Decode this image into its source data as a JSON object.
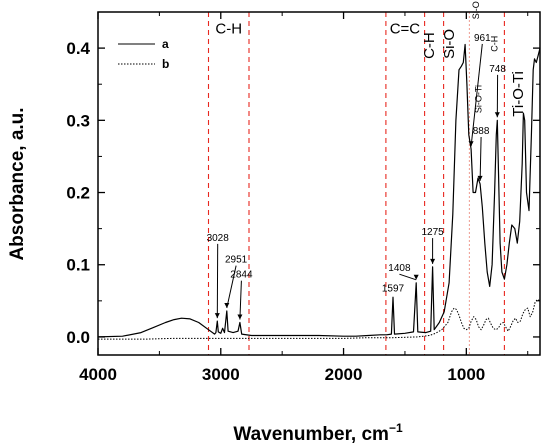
{
  "chart_data": {
    "type": "line",
    "title": "",
    "xlabel": "Wavenumber, cm",
    "xlabel_superscript": "−1",
    "ylabel": "Absorbance, a.u.",
    "xlim": [
      4000,
      400
    ],
    "ylim": [
      -0.025,
      0.45
    ],
    "x_reversed": true,
    "x_ticks": [
      4000,
      3000,
      2000,
      1000
    ],
    "x_tick_labels": [
      "4000",
      "3000",
      "2000",
      "1000"
    ],
    "y_ticks": [
      0.0,
      0.1,
      0.2,
      0.3,
      0.4
    ],
    "y_tick_labels": [
      "0.0",
      "0.1",
      "0.2",
      "0.3",
      "0.4"
    ],
    "legend_position": "top-left",
    "grid": false,
    "series": [
      {
        "name": "a",
        "style": "solid",
        "color": "#000000",
        "points": [
          [
            4000,
            0.0
          ],
          [
            3800,
            0.001
          ],
          [
            3650,
            0.006
          ],
          [
            3550,
            0.013
          ],
          [
            3450,
            0.02
          ],
          [
            3380,
            0.024
          ],
          [
            3320,
            0.026
          ],
          [
            3250,
            0.025
          ],
          [
            3180,
            0.02
          ],
          [
            3100,
            0.01
          ],
          [
            3050,
            0.004
          ],
          [
            3040,
            0.006
          ],
          [
            3028,
            0.022
          ],
          [
            3020,
            0.007
          ],
          [
            3000,
            0.005
          ],
          [
            2985,
            0.012
          ],
          [
            2970,
            0.006
          ],
          [
            2951,
            0.036
          ],
          [
            2940,
            0.008
          ],
          [
            2900,
            0.006
          ],
          [
            2860,
            0.008
          ],
          [
            2844,
            0.02
          ],
          [
            2830,
            0.004
          ],
          [
            2750,
            0.002
          ],
          [
            2600,
            0.002
          ],
          [
            2400,
            0.002
          ],
          [
            2200,
            0.002
          ],
          [
            2000,
            0.001
          ],
          [
            1900,
            0.001
          ],
          [
            1800,
            0.002
          ],
          [
            1700,
            0.003
          ],
          [
            1650,
            0.003
          ],
          [
            1610,
            0.004
          ],
          [
            1597,
            0.055
          ],
          [
            1585,
            0.004
          ],
          [
            1500,
            0.005
          ],
          [
            1430,
            0.007
          ],
          [
            1408,
            0.075
          ],
          [
            1395,
            0.007
          ],
          [
            1330,
            0.006
          ],
          [
            1290,
            0.008
          ],
          [
            1275,
            0.097
          ],
          [
            1262,
            0.01
          ],
          [
            1220,
            0.02
          ],
          [
            1180,
            0.035
          ],
          [
            1140,
            0.075
          ],
          [
            1110,
            0.17
          ],
          [
            1085,
            0.3
          ],
          [
            1060,
            0.37
          ],
          [
            1040,
            0.375
          ],
          [
            1025,
            0.38
          ],
          [
            1010,
            0.405
          ],
          [
            995,
            0.35
          ],
          [
            980,
            0.28
          ],
          [
            961,
            0.26
          ],
          [
            945,
            0.2
          ],
          [
            925,
            0.2
          ],
          [
            905,
            0.22
          ],
          [
            888,
            0.212
          ],
          [
            870,
            0.18
          ],
          [
            850,
            0.13
          ],
          [
            830,
            0.09
          ],
          [
            810,
            0.07
          ],
          [
            790,
            0.1
          ],
          [
            770,
            0.2
          ],
          [
            756,
            0.28
          ],
          [
            748,
            0.3
          ],
          [
            740,
            0.24
          ],
          [
            725,
            0.13
          ],
          [
            710,
            0.09
          ],
          [
            690,
            0.08
          ],
          [
            670,
            0.1
          ],
          [
            650,
            0.13
          ],
          [
            630,
            0.155
          ],
          [
            605,
            0.15
          ],
          [
            585,
            0.13
          ],
          [
            565,
            0.16
          ],
          [
            545,
            0.24
          ],
          [
            535,
            0.31
          ],
          [
            525,
            0.3
          ],
          [
            510,
            0.2
          ],
          [
            490,
            0.175
          ],
          [
            470,
            0.28
          ],
          [
            455,
            0.37
          ],
          [
            445,
            0.385
          ],
          [
            430,
            0.38
          ],
          [
            415,
            0.39
          ],
          [
            400,
            0.4
          ]
        ]
      },
      {
        "name": "b",
        "style": "dotted",
        "color": "#000000",
        "points": [
          [
            4000,
            -0.003
          ],
          [
            3800,
            -0.003
          ],
          [
            3600,
            -0.003
          ],
          [
            3400,
            -0.002
          ],
          [
            3200,
            -0.002
          ],
          [
            3000,
            -0.002
          ],
          [
            2800,
            -0.002
          ],
          [
            2600,
            -0.002
          ],
          [
            2400,
            -0.002
          ],
          [
            2200,
            -0.002
          ],
          [
            2000,
            -0.002
          ],
          [
            1800,
            -0.001
          ],
          [
            1600,
            -0.001
          ],
          [
            1400,
            0.0
          ],
          [
            1300,
            0.002
          ],
          [
            1250,
            0.005
          ],
          [
            1200,
            0.01
          ],
          [
            1150,
            0.02
          ],
          [
            1120,
            0.035
          ],
          [
            1100,
            0.04
          ],
          [
            1080,
            0.038
          ],
          [
            1060,
            0.03
          ],
          [
            1040,
            0.02
          ],
          [
            1020,
            0.012
          ],
          [
            1000,
            0.01
          ],
          [
            980,
            0.012
          ],
          [
            960,
            0.022
          ],
          [
            940,
            0.028
          ],
          [
            920,
            0.024
          ],
          [
            900,
            0.014
          ],
          [
            880,
            0.01
          ],
          [
            860,
            0.016
          ],
          [
            840,
            0.024
          ],
          [
            820,
            0.026
          ],
          [
            800,
            0.018
          ],
          [
            780,
            0.012
          ],
          [
            760,
            0.01
          ],
          [
            740,
            0.012
          ],
          [
            720,
            0.018
          ],
          [
            700,
            0.02
          ],
          [
            680,
            0.014
          ],
          [
            660,
            0.008
          ],
          [
            640,
            0.014
          ],
          [
            620,
            0.022
          ],
          [
            600,
            0.026
          ],
          [
            580,
            0.02
          ],
          [
            560,
            0.022
          ],
          [
            540,
            0.032
          ],
          [
            520,
            0.038
          ],
          [
            500,
            0.04
          ],
          [
            480,
            0.028
          ],
          [
            460,
            0.034
          ],
          [
            440,
            0.048
          ],
          [
            420,
            0.052
          ],
          [
            400,
            0.05
          ]
        ]
      }
    ],
    "reference_lines": [
      {
        "x": 3100,
        "color": "#e8281f",
        "style": "dashed"
      },
      {
        "x": 2770,
        "color": "#e8281f",
        "style": "dashed"
      },
      {
        "x": 1655,
        "color": "#e8281f",
        "style": "dashed"
      },
      {
        "x": 1340,
        "color": "#e8281f",
        "style": "dashed"
      },
      {
        "x": 1185,
        "color": "#e8281f",
        "style": "dashed"
      },
      {
        "x": 975,
        "color": "#f0a39a",
        "style": "dotted"
      },
      {
        "x": 690,
        "color": "#e8281f",
        "style": "dashed"
      }
    ],
    "region_labels": [
      {
        "text": "C-H",
        "x": 2935,
        "y": 0.42,
        "rotate": false
      },
      {
        "text": "C=C",
        "x": 1500,
        "y": 0.42,
        "rotate": false
      },
      {
        "text": "C-H",
        "x": 1265,
        "y": 0.385,
        "rotate": true
      },
      {
        "text": "Si-O",
        "x": 1100,
        "y": 0.385,
        "rotate": true
      },
      {
        "text": "Ti-O-Ti",
        "x": 540,
        "y": 0.305,
        "rotate": true
      }
    ],
    "annotations": [
      {
        "text": "3028",
        "x": 3028,
        "y": 0.022,
        "label_x": 3025,
        "label_y": 0.133
      },
      {
        "text": "2951",
        "x": 2951,
        "y": 0.036,
        "label_x": 2875,
        "label_y": 0.103
      },
      {
        "text": "2844",
        "x": 2844,
        "y": 0.02,
        "label_x": 2832,
        "label_y": 0.082
      },
      {
        "text": "1597",
        "x": 1597,
        "y": 0.055,
        "label_x": 1597,
        "label_y": 0.063
      },
      {
        "text": "1408",
        "x": 1408,
        "y": 0.075,
        "label_x": 1545,
        "label_y": 0.091
      },
      {
        "text": "1275",
        "x": 1275,
        "y": 0.097,
        "label_x": 1275,
        "label_y": 0.141
      },
      {
        "text": "961",
        "x": 961,
        "y": 0.26,
        "label_x": 870,
        "label_y": 0.41
      },
      {
        "text": "748",
        "x": 748,
        "y": 0.3,
        "label_x": 745,
        "label_y": 0.367
      },
      {
        "text": "888",
        "x": 888,
        "y": 0.212,
        "label_x": 880,
        "label_y": 0.281
      }
    ],
    "small_labels": [
      {
        "text": "Si-O",
        "x": 895,
        "y": 0.44,
        "rotate": true
      },
      {
        "text": "C-H",
        "x": 745,
        "y": 0.395,
        "rotate": true
      },
      {
        "text": "Si-O-Ti",
        "x": 875,
        "y": 0.31,
        "rotate": true
      }
    ]
  }
}
